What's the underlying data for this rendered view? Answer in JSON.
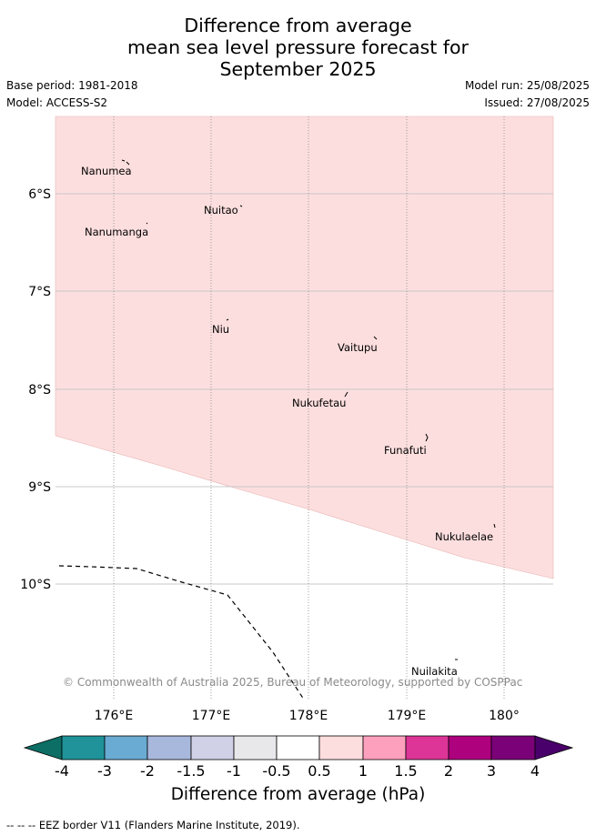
{
  "title": {
    "line1": "Difference from average",
    "line2": "mean sea level pressure forecast for",
    "line3": "September 2025"
  },
  "meta": {
    "base_period": "Base period: 1981-2018",
    "model": "Model: ACCESS-S2",
    "model_run": "Model run: 25/08/2025",
    "issued": "Issued: 27/08/2025"
  },
  "map": {
    "lat_labels": [
      "6°S",
      "7°S",
      "8°S",
      "9°S",
      "10°S"
    ],
    "lon_labels": [
      "176°E",
      "177°E",
      "178°E",
      "179°E",
      "180°"
    ],
    "copyright": "© Commonwealth of Australia 2025, Bureau of Meteorology, supported by COSPPac",
    "anomaly_fill_color": "#fddede",
    "places": [
      {
        "name": "Nanumea"
      },
      {
        "name": "Nuitao"
      },
      {
        "name": "Nanumanga"
      },
      {
        "name": "Niu"
      },
      {
        "name": "Vaitupu"
      },
      {
        "name": "Nukufetau"
      },
      {
        "name": "Funafuti"
      },
      {
        "name": "Nukulaelae"
      },
      {
        "name": "Nuilakita"
      }
    ]
  },
  "colorbar": {
    "labels": [
      "-4",
      "-3",
      "-2",
      "-1.5",
      "-1",
      "-0.5",
      "0.5",
      "1",
      "1.5",
      "2",
      "3",
      "4"
    ],
    "colors": [
      "#0c6e65",
      "#1f9399",
      "#6aabd3",
      "#a8b8dd",
      "#d0d0e7",
      "#e8e7ea",
      "#ffffff",
      "#fddede",
      "#fca0bd",
      "#dd3497",
      "#ae017e",
      "#7a0177",
      "#49006a"
    ],
    "xlabel": "Difference from average (hPa)"
  },
  "footnote": "-- -- -- EEZ border V11 (Flanders Marine Institute, 2019)."
}
